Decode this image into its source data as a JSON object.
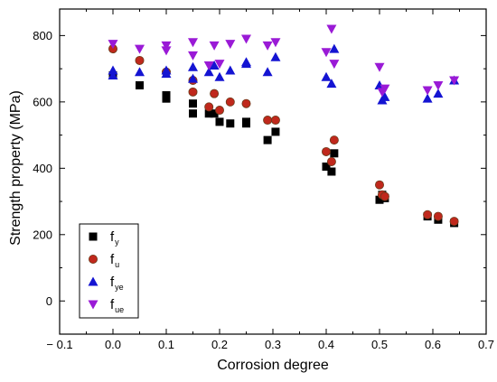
{
  "chart_data": {
    "type": "scatter",
    "xlabel": "Corrosion degree",
    "ylabel": "Strength property (MPa)",
    "xlim": [
      -0.1,
      0.7
    ],
    "ylim": [
      -100,
      880
    ],
    "xticks": [
      -0.1,
      0.0,
      0.1,
      0.2,
      0.3,
      0.4,
      0.5,
      0.6,
      0.7
    ],
    "xtick_labels": [
      "− 0.1",
      "0.0",
      "0.1",
      "0.2",
      "0.3",
      "0.4",
      "0.5",
      "0.6",
      "0.7"
    ],
    "yticks": [
      0,
      200,
      400,
      600,
      800
    ],
    "ytick_labels": [
      "0",
      "200",
      "400",
      "600",
      "800"
    ],
    "grid": false,
    "legend_position": "bottom-left",
    "series": [
      {
        "base": "f",
        "sub": "y",
        "marker": "square",
        "color": "#000000",
        "points": [
          [
            0.0,
            680
          ],
          [
            0.05,
            650
          ],
          [
            0.1,
            620
          ],
          [
            0.1,
            610
          ],
          [
            0.15,
            595
          ],
          [
            0.15,
            565
          ],
          [
            0.18,
            565
          ],
          [
            0.19,
            565
          ],
          [
            0.2,
            540
          ],
          [
            0.22,
            535
          ],
          [
            0.25,
            535
          ],
          [
            0.25,
            540
          ],
          [
            0.29,
            485
          ],
          [
            0.305,
            510
          ],
          [
            0.4,
            405
          ],
          [
            0.41,
            390
          ],
          [
            0.415,
            445
          ],
          [
            0.5,
            305
          ],
          [
            0.505,
            320
          ],
          [
            0.51,
            310
          ],
          [
            0.59,
            255
          ],
          [
            0.61,
            245
          ],
          [
            0.64,
            235
          ]
        ]
      },
      {
        "base": "f",
        "sub": "u",
        "marker": "circle",
        "color": "#c0281c",
        "points": [
          [
            0.0,
            760
          ],
          [
            0.05,
            725
          ],
          [
            0.1,
            690
          ],
          [
            0.15,
            665
          ],
          [
            0.15,
            630
          ],
          [
            0.18,
            585
          ],
          [
            0.19,
            625
          ],
          [
            0.2,
            575
          ],
          [
            0.22,
            600
          ],
          [
            0.25,
            595
          ],
          [
            0.29,
            545
          ],
          [
            0.305,
            545
          ],
          [
            0.4,
            450
          ],
          [
            0.41,
            420
          ],
          [
            0.415,
            485
          ],
          [
            0.5,
            350
          ],
          [
            0.505,
            320
          ],
          [
            0.51,
            315
          ],
          [
            0.59,
            260
          ],
          [
            0.61,
            255
          ],
          [
            0.64,
            240
          ]
        ]
      },
      {
        "base": "f",
        "sub": "ye",
        "marker": "triangle-up",
        "color": "#1414d2",
        "points": [
          [
            0.0,
            695
          ],
          [
            0.0,
            680
          ],
          [
            0.05,
            690
          ],
          [
            0.1,
            695
          ],
          [
            0.1,
            685
          ],
          [
            0.15,
            670
          ],
          [
            0.15,
            705
          ],
          [
            0.18,
            690
          ],
          [
            0.19,
            710
          ],
          [
            0.2,
            675
          ],
          [
            0.22,
            695
          ],
          [
            0.25,
            715
          ],
          [
            0.25,
            720
          ],
          [
            0.29,
            690
          ],
          [
            0.305,
            735
          ],
          [
            0.4,
            675
          ],
          [
            0.41,
            655
          ],
          [
            0.415,
            760
          ],
          [
            0.5,
            650
          ],
          [
            0.505,
            605
          ],
          [
            0.51,
            615
          ],
          [
            0.59,
            610
          ],
          [
            0.61,
            625
          ],
          [
            0.64,
            665
          ]
        ]
      },
      {
        "base": "f",
        "sub": "ue",
        "marker": "triangle-down",
        "color": "#9a1ad6",
        "points": [
          [
            0.0,
            775
          ],
          [
            0.05,
            760
          ],
          [
            0.1,
            770
          ],
          [
            0.1,
            755
          ],
          [
            0.15,
            780
          ],
          [
            0.15,
            740
          ],
          [
            0.18,
            710
          ],
          [
            0.19,
            770
          ],
          [
            0.2,
            715
          ],
          [
            0.22,
            775
          ],
          [
            0.25,
            790
          ],
          [
            0.29,
            770
          ],
          [
            0.305,
            780
          ],
          [
            0.4,
            750
          ],
          [
            0.41,
            820
          ],
          [
            0.415,
            715
          ],
          [
            0.5,
            705
          ],
          [
            0.505,
            630
          ],
          [
            0.51,
            640
          ],
          [
            0.59,
            635
          ],
          [
            0.61,
            650
          ],
          [
            0.64,
            665
          ]
        ]
      }
    ]
  }
}
